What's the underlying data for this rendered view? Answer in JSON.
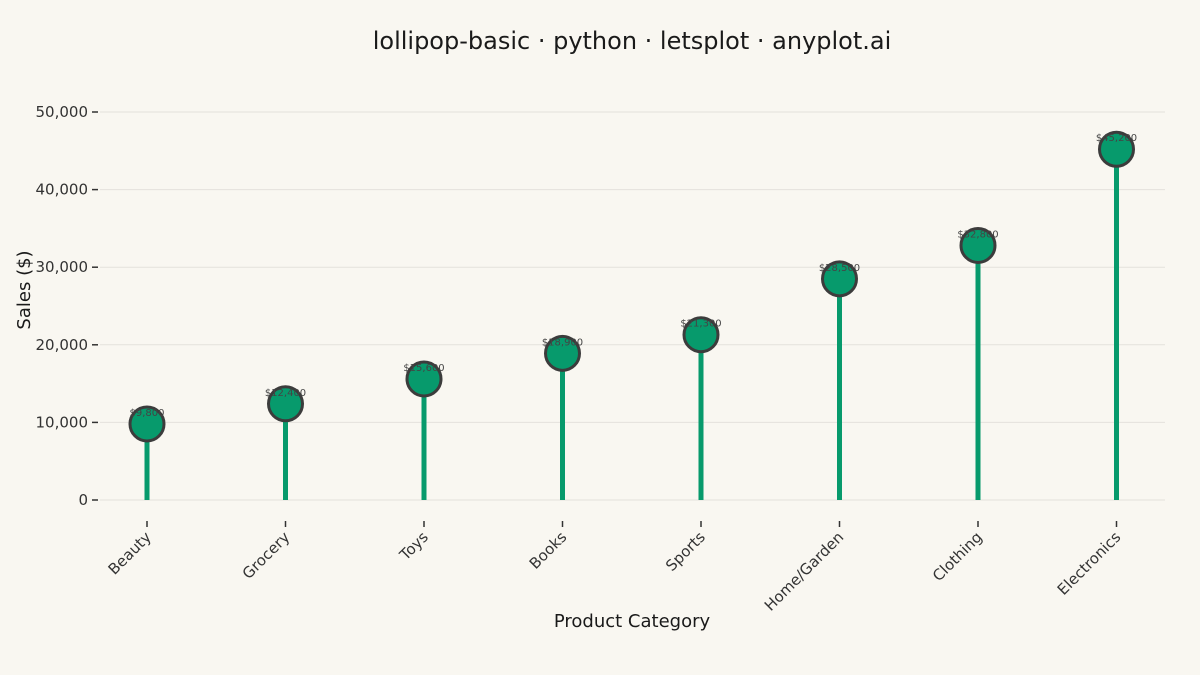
{
  "chart_data": {
    "type": "lollipop",
    "title": "lollipop-basic · python · letsplot · anyplot.ai",
    "xlabel": "Product Category",
    "ylabel": "Sales ($)",
    "categories": [
      "Beauty",
      "Grocery",
      "Toys",
      "Books",
      "Sports",
      "Home/Garden",
      "Clothing",
      "Electronics"
    ],
    "values": [
      9800,
      12400,
      15600,
      18900,
      21300,
      28500,
      32800,
      45200
    ],
    "data_labels": [
      "$9,800",
      "$12,400",
      "$15,600",
      "$18,900",
      "$21,300",
      "$28,500",
      "$32,800",
      "$45,200"
    ],
    "y_ticks": [
      0,
      10000,
      20000,
      30000,
      40000,
      50000
    ],
    "y_tick_labels": [
      "0",
      "10,000",
      "20,000",
      "30,000",
      "40,000",
      "50,000"
    ],
    "ylim": [
      0,
      50000
    ],
    "grid": true,
    "legend": "none",
    "colors": {
      "stem": "#079a6c",
      "marker_fill": "#079a6c",
      "marker_stroke": "#3c3c3c",
      "background": "#f9f7f1",
      "grid": "#e4e2dc"
    }
  }
}
